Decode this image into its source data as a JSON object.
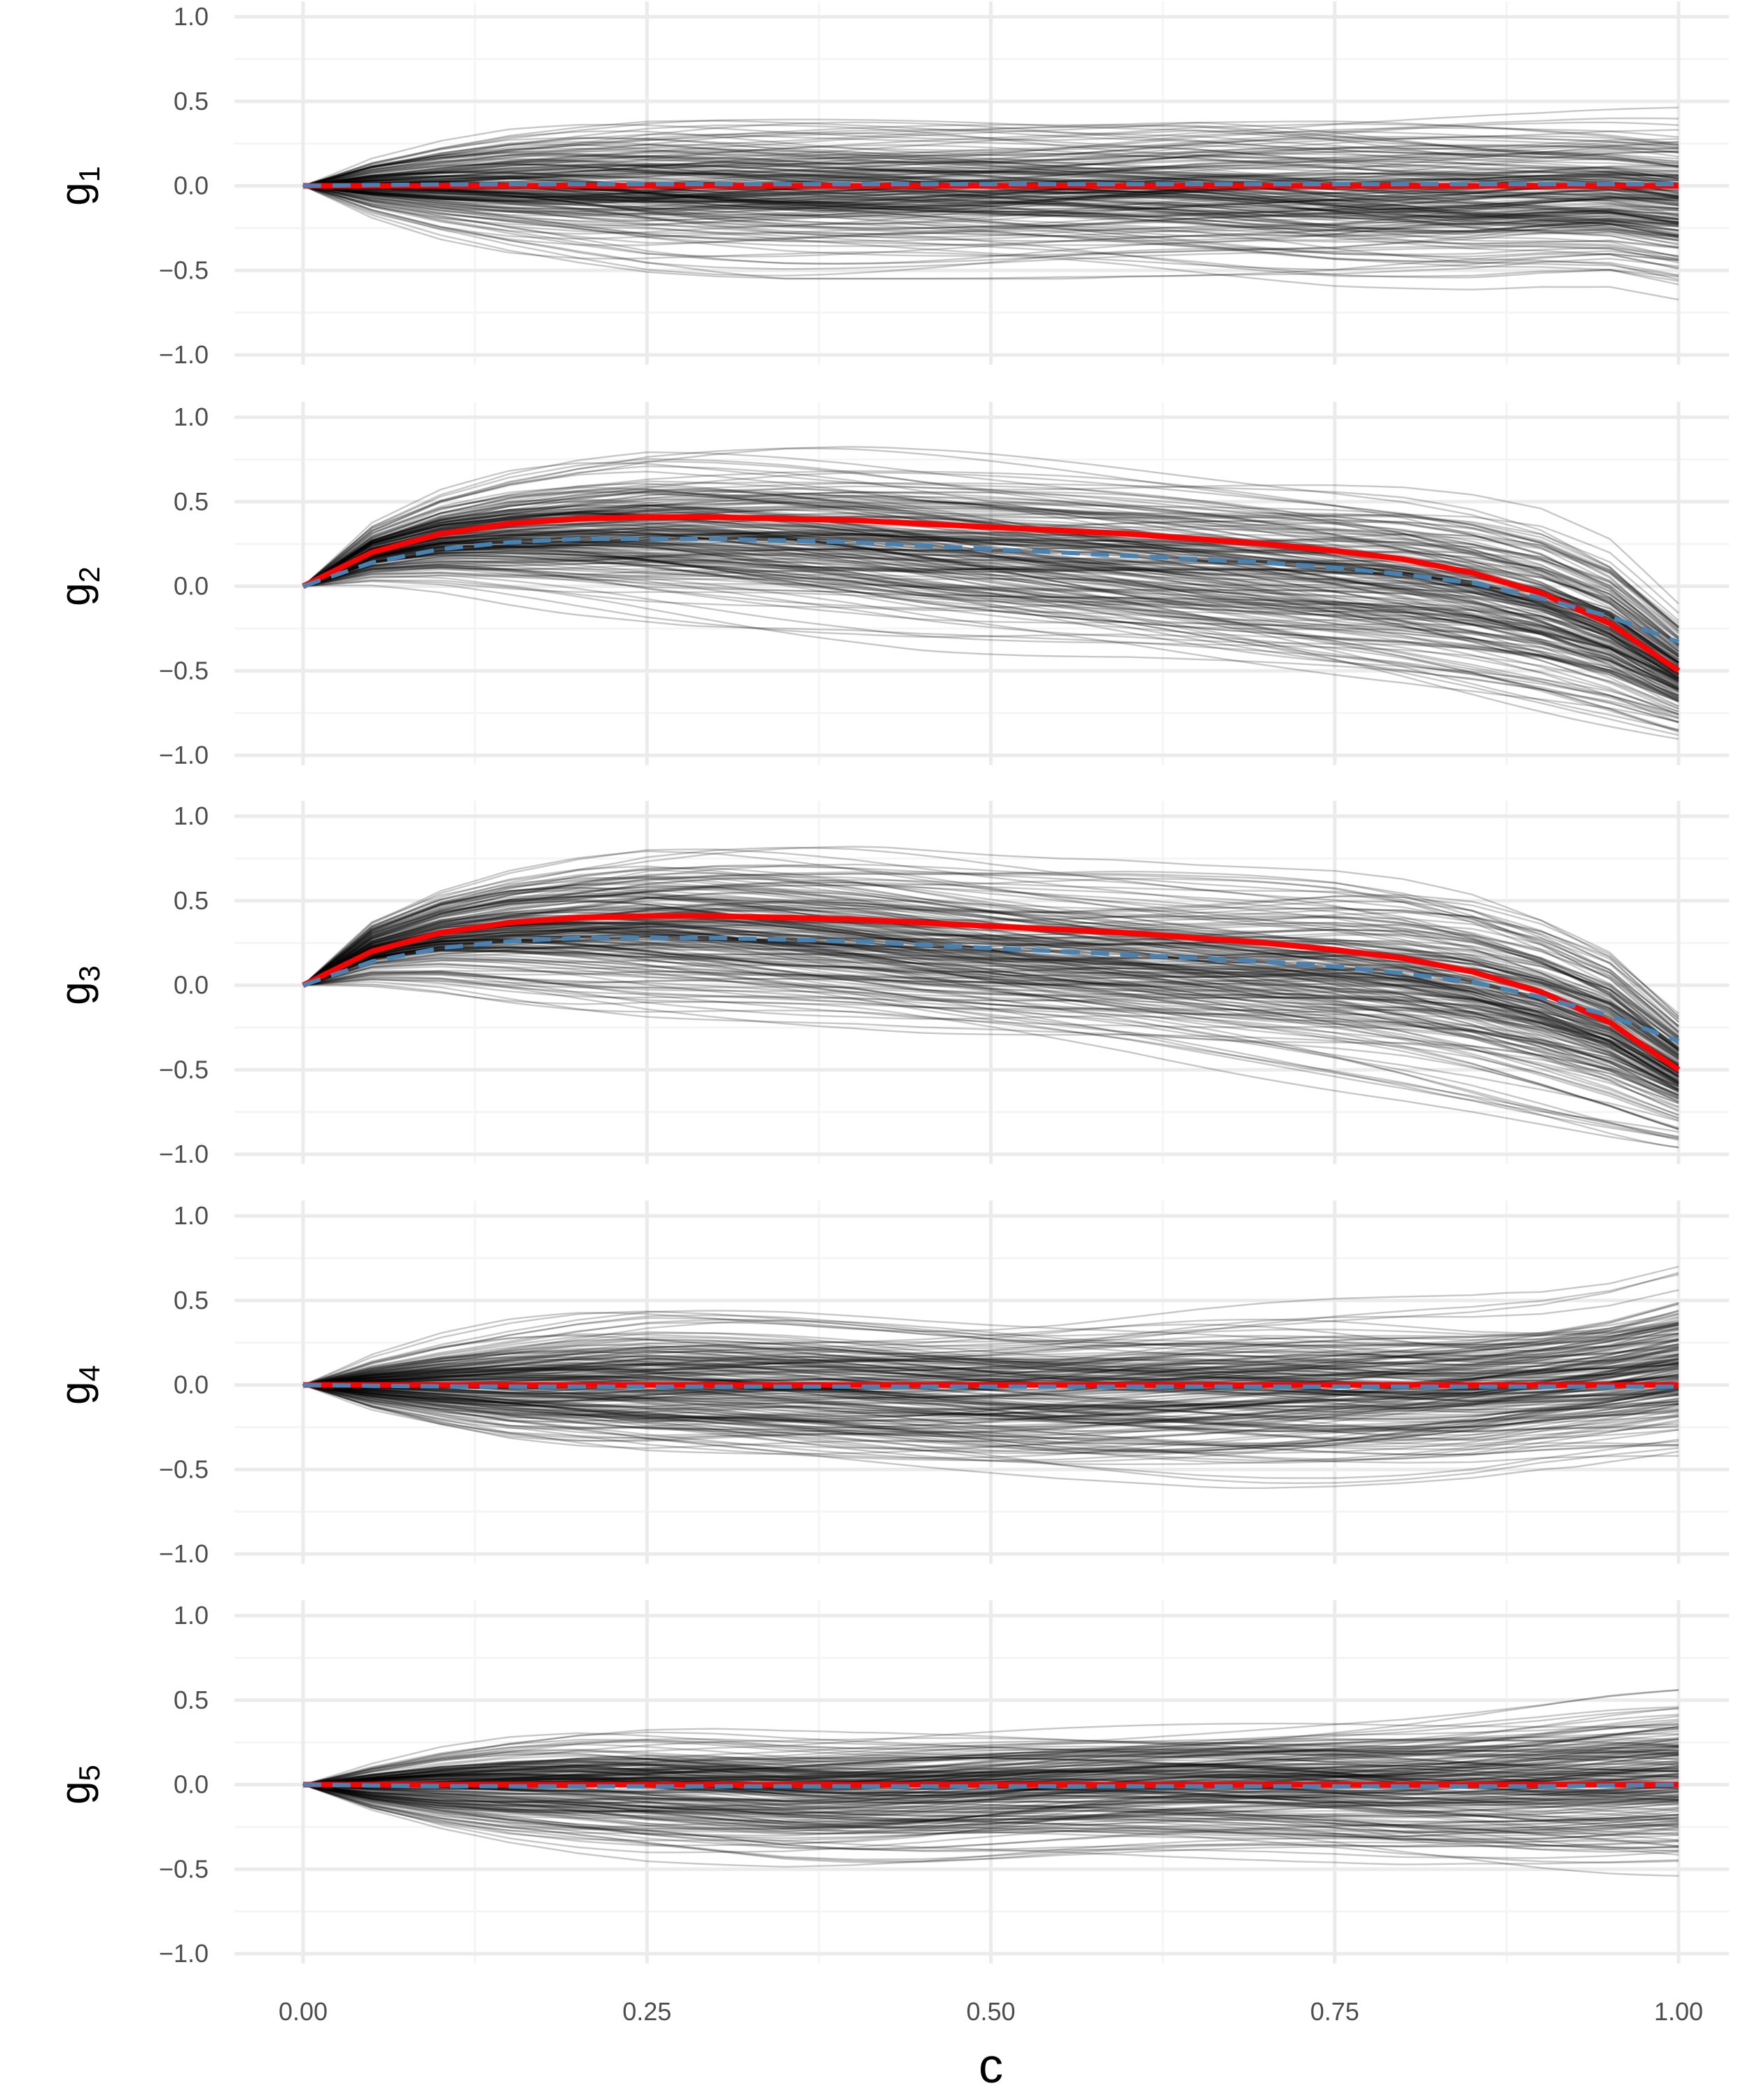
{
  "chart_data": {
    "type": "line",
    "layout": "5 vertically stacked facets sharing x axis",
    "xlabel": "c",
    "xlim": [
      0,
      1
    ],
    "ylim": [
      -1,
      1
    ],
    "x_ticks": [
      "0.00",
      "0.25",
      "0.50",
      "0.75",
      "1.00"
    ],
    "y_ticks": [
      "1.0",
      "0.5",
      "0.0",
      "−0.5",
      "−1.0"
    ],
    "grid": true,
    "legend": "none",
    "colors": {
      "samples": "#000000",
      "true_curve": "#ff0000",
      "estimate_curve": "#4682b4",
      "grid_major": "#ebebeb",
      "grid_minor": "#f5f5f5",
      "tick_text": "#4d4d4d"
    },
    "posterior_sample_count_approx": 200,
    "x": [
      0,
      0.05,
      0.1,
      0.15,
      0.2,
      0.25,
      0.3,
      0.35,
      0.4,
      0.45,
      0.5,
      0.55,
      0.6,
      0.65,
      0.7,
      0.75,
      0.8,
      0.85,
      0.9,
      0.95,
      1.0
    ],
    "panels": [
      {
        "ylabel": "g",
        "ylabel_sub": "1",
        "series": [
          {
            "values": [
              0,
              0.005,
              0.008,
              0.009,
              0.01,
              0.01,
              0.01,
              0.01,
              0.01,
              0.01,
              0.01,
              0.01,
              0.01,
              0.01,
              0.01,
              0.01,
              0.01,
              0.01,
              0.01,
              0.01,
              0.01
            ]
          },
          {
            "values": [
              0,
              0,
              0,
              0,
              0,
              0,
              0,
              0,
              0,
              0,
              0,
              0,
              0,
              0,
              0,
              0,
              0,
              0,
              0,
              0,
              0
            ]
          }
        ],
        "sample_band_upper": [
          0,
          0.2,
          0.32,
          0.4,
          0.44,
          0.46,
          0.47,
          0.47,
          0.47,
          0.47,
          0.47,
          0.47,
          0.48,
          0.5,
          0.5,
          0.5,
          0.49,
          0.48,
          0.47,
          0.47,
          0.47
        ],
        "sample_band_lower": [
          0,
          -0.2,
          -0.33,
          -0.42,
          -0.48,
          -0.52,
          -0.54,
          -0.55,
          -0.55,
          -0.55,
          -0.55,
          -0.55,
          -0.56,
          -0.58,
          -0.6,
          -0.62,
          -0.62,
          -0.62,
          -0.6,
          -0.6,
          -0.68
        ]
      },
      {
        "ylabel": "g",
        "ylabel_sub": "2",
        "series": [
          {
            "values": [
              0,
              0.14,
              0.22,
              0.26,
              0.28,
              0.28,
              0.28,
              0.27,
              0.26,
              0.24,
              0.22,
              0.2,
              0.18,
              0.16,
              0.14,
              0.11,
              0.07,
              0.02,
              -0.07,
              -0.18,
              -0.33
            ]
          },
          {
            "values": [
              0,
              0.2,
              0.31,
              0.37,
              0.4,
              0.41,
              0.41,
              0.4,
              0.39,
              0.37,
              0.35,
              0.33,
              0.31,
              0.28,
              0.25,
              0.21,
              0.16,
              0.08,
              -0.04,
              -0.22,
              -0.5
            ]
          }
        ],
        "sample_band_upper": [
          0,
          0.4,
          0.6,
          0.72,
          0.79,
          0.83,
          0.84,
          0.84,
          0.83,
          0.81,
          0.79,
          0.77,
          0.75,
          0.73,
          0.71,
          0.69,
          0.66,
          0.6,
          0.5,
          0.3,
          -0.1
        ],
        "sample_band_lower": [
          0,
          -0.02,
          -0.06,
          -0.12,
          -0.17,
          -0.21,
          -0.25,
          -0.29,
          -0.33,
          -0.38,
          -0.42,
          -0.46,
          -0.5,
          -0.55,
          -0.6,
          -0.65,
          -0.7,
          -0.76,
          -0.83,
          -0.9,
          -0.96
        ]
      },
      {
        "ylabel": "g",
        "ylabel_sub": "3",
        "series": [
          {
            "values": [
              0,
              0.14,
              0.22,
              0.26,
              0.28,
              0.28,
              0.28,
              0.27,
              0.26,
              0.24,
              0.22,
              0.2,
              0.18,
              0.16,
              0.14,
              0.11,
              0.07,
              0.02,
              -0.07,
              -0.18,
              -0.33
            ]
          },
          {
            "values": [
              0,
              0.2,
              0.31,
              0.37,
              0.4,
              0.41,
              0.41,
              0.4,
              0.39,
              0.37,
              0.35,
              0.33,
              0.31,
              0.28,
              0.25,
              0.21,
              0.16,
              0.08,
              -0.04,
              -0.22,
              -0.5
            ]
          }
        ],
        "sample_band_upper": [
          0,
          0.42,
          0.62,
          0.74,
          0.81,
          0.85,
          0.86,
          0.85,
          0.83,
          0.8,
          0.77,
          0.75,
          0.74,
          0.73,
          0.73,
          0.73,
          0.7,
          0.63,
          0.5,
          0.3,
          -0.1
        ],
        "sample_band_lower": [
          0,
          -0.02,
          -0.06,
          -0.12,
          -0.17,
          -0.21,
          -0.25,
          -0.29,
          -0.33,
          -0.38,
          -0.42,
          -0.46,
          -0.5,
          -0.55,
          -0.6,
          -0.65,
          -0.7,
          -0.76,
          -0.83,
          -0.9,
          -0.96
        ]
      },
      {
        "ylabel": "g",
        "ylabel_sub": "4",
        "series": [
          {
            "values": [
              0,
              -0.005,
              -0.008,
              -0.01,
              -0.01,
              -0.01,
              -0.01,
              -0.01,
              -0.01,
              -0.01,
              -0.01,
              -0.01,
              -0.01,
              -0.01,
              -0.01,
              -0.01,
              -0.01,
              -0.01,
              -0.01,
              -0.01,
              -0.01
            ]
          },
          {
            "values": [
              0,
              0,
              0,
              0,
              0,
              0,
              0,
              0,
              0,
              0,
              0,
              0,
              0,
              0,
              0,
              0,
              0,
              0,
              0,
              0,
              0
            ]
          }
        ],
        "sample_band_upper": [
          0,
          0.2,
          0.33,
          0.42,
          0.48,
          0.51,
          0.52,
          0.52,
          0.51,
          0.5,
          0.5,
          0.51,
          0.53,
          0.55,
          0.56,
          0.56,
          0.55,
          0.54,
          0.55,
          0.6,
          0.7
        ],
        "sample_band_lower": [
          0,
          -0.18,
          -0.3,
          -0.39,
          -0.44,
          -0.47,
          -0.49,
          -0.51,
          -0.53,
          -0.55,
          -0.57,
          -0.59,
          -0.6,
          -0.61,
          -0.61,
          -0.6,
          -0.58,
          -0.55,
          -0.5,
          -0.47,
          -0.45
        ]
      },
      {
        "ylabel": "g",
        "ylabel_sub": "5",
        "series": [
          {
            "values": [
              0,
              -0.005,
              -0.008,
              -0.01,
              -0.01,
              -0.01,
              -0.01,
              -0.01,
              -0.01,
              -0.01,
              -0.01,
              -0.01,
              -0.01,
              -0.01,
              -0.01,
              -0.01,
              -0.01,
              -0.01,
              -0.01,
              -0.005,
              0
            ]
          },
          {
            "values": [
              0,
              0,
              0,
              0,
              0,
              0,
              0,
              0,
              0,
              0,
              0,
              0,
              0,
              0,
              0,
              0,
              0,
              0,
              0,
              0,
              0
            ]
          }
        ],
        "sample_band_upper": [
          0,
          0.15,
          0.26,
          0.33,
          0.37,
          0.38,
          0.38,
          0.37,
          0.37,
          0.38,
          0.39,
          0.4,
          0.41,
          0.42,
          0.43,
          0.44,
          0.45,
          0.47,
          0.5,
          0.54,
          0.57
        ],
        "sample_band_lower": [
          0,
          -0.18,
          -0.3,
          -0.38,
          -0.43,
          -0.46,
          -0.48,
          -0.5,
          -0.5,
          -0.49,
          -0.47,
          -0.45,
          -0.44,
          -0.44,
          -0.45,
          -0.47,
          -0.5,
          -0.52,
          -0.55,
          -0.57,
          -0.58
        ]
      }
    ]
  }
}
